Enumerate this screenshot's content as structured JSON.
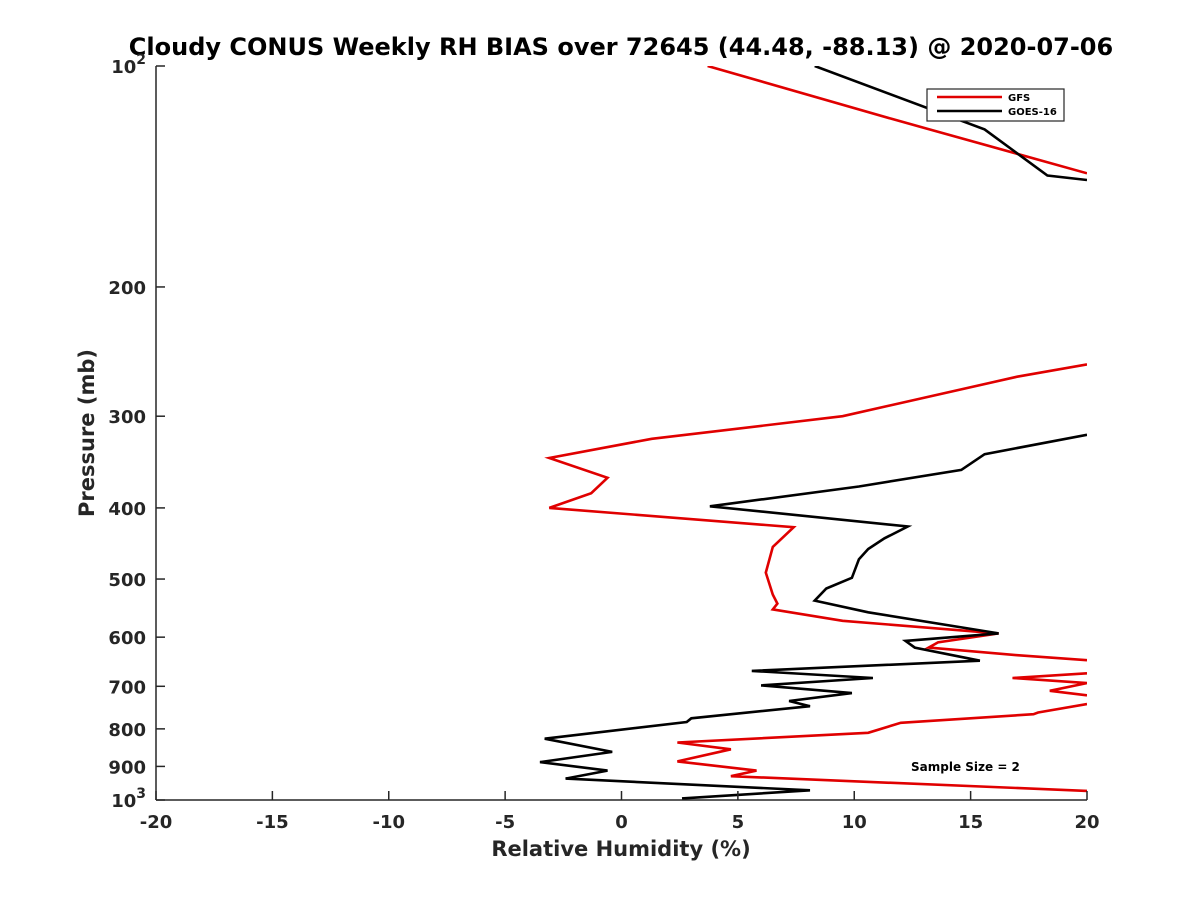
{
  "chart_data": {
    "type": "line",
    "title": "Cloudy CONUS Weekly RH BIAS over 72645 (44.48, -88.13) @ 2020-07-06",
    "xlabel": "Relative Humidity (%)",
    "ylabel": "Pressure (mb)",
    "xlim": [
      -20,
      20
    ],
    "ylim": [
      100,
      1000
    ],
    "y_scale": "log",
    "y_reversed": true,
    "x_ticks": [
      "-20",
      "-15",
      "-10",
      "-5",
      "0",
      "5",
      "10",
      "15",
      "20"
    ],
    "y_ticks": [
      {
        "value": 100,
        "base": "10",
        "exp": "2"
      },
      {
        "value": 200,
        "label": "200"
      },
      {
        "value": 300,
        "label": "300"
      },
      {
        "value": 400,
        "label": "400"
      },
      {
        "value": 500,
        "label": "500"
      },
      {
        "value": 600,
        "label": "600"
      },
      {
        "value": 700,
        "label": "700"
      },
      {
        "value": 800,
        "label": "800"
      },
      {
        "value": 900,
        "label": "900"
      },
      {
        "value": 1000,
        "base": "10",
        "exp": "3"
      }
    ],
    "grid": false,
    "legend_position": "top-right",
    "annotation": "Sample Size = 2",
    "series": [
      {
        "name": "GFS",
        "color": "#e00000",
        "points": [
          [
            3.7,
            100
          ],
          [
            11.6,
            118
          ],
          [
            20.0,
            140
          ],
          null,
          [
            20.0,
            255
          ],
          [
            17.0,
            265
          ],
          [
            9.5,
            300
          ],
          [
            1.3,
            322
          ],
          [
            -3.1,
            342
          ],
          [
            -0.6,
            364
          ],
          [
            -1.3,
            382
          ],
          [
            -3.1,
            400
          ],
          [
            6.2,
            422
          ],
          [
            7.4,
            425
          ],
          [
            6.5,
            452
          ],
          [
            6.2,
            490
          ],
          [
            6.5,
            525
          ],
          [
            6.7,
            540
          ],
          [
            6.5,
            550
          ],
          [
            9.5,
            570
          ],
          [
            16.2,
            593
          ],
          [
            13.6,
            610
          ],
          [
            13.2,
            620
          ],
          [
            17.0,
            635
          ],
          [
            20.0,
            645
          ],
          null,
          [
            20.0,
            672
          ],
          [
            16.8,
            682
          ],
          [
            20.0,
            693
          ],
          [
            18.4,
            710
          ],
          [
            20.0,
            720
          ],
          null,
          [
            20.0,
            740
          ],
          [
            17.9,
            760
          ],
          [
            17.7,
            764
          ],
          [
            12.0,
            785
          ],
          [
            10.6,
            810
          ],
          [
            2.4,
            835
          ],
          [
            4.7,
            853
          ],
          [
            2.4,
            886
          ],
          [
            5.8,
            912
          ],
          [
            4.7,
            928
          ],
          [
            20.0,
            972
          ]
        ]
      },
      {
        "name": "GOES-16",
        "color": "#000000",
        "points": [
          [
            8.3,
            100
          ],
          [
            15.6,
            122
          ],
          [
            18.3,
            141
          ],
          [
            20.0,
            143
          ],
          null,
          [
            20.0,
            318
          ],
          [
            15.6,
            338
          ],
          [
            14.6,
            355
          ],
          [
            10.2,
            374
          ],
          [
            3.8,
            398
          ],
          [
            12.3,
            424
          ],
          [
            11.3,
            440
          ],
          [
            10.6,
            455
          ],
          [
            10.2,
            470
          ],
          [
            9.9,
            498
          ],
          [
            8.8,
            515
          ],
          [
            8.3,
            535
          ],
          [
            10.6,
            555
          ],
          [
            16.2,
            593
          ],
          [
            12.2,
            607
          ],
          [
            12.6,
            620
          ],
          [
            15.4,
            646
          ],
          [
            5.6,
            667
          ],
          [
            10.8,
            682
          ],
          [
            6.0,
            698
          ],
          [
            9.9,
            715
          ],
          [
            7.2,
            733
          ],
          [
            8.1,
            745
          ],
          [
            3.0,
            774
          ],
          [
            2.8,
            783
          ],
          [
            -3.3,
            825
          ],
          [
            -0.4,
            860
          ],
          [
            -3.5,
            888
          ],
          [
            -0.6,
            912
          ],
          [
            -2.4,
            935
          ],
          [
            8.1,
            970
          ],
          [
            2.6,
            995
          ]
        ]
      }
    ]
  }
}
